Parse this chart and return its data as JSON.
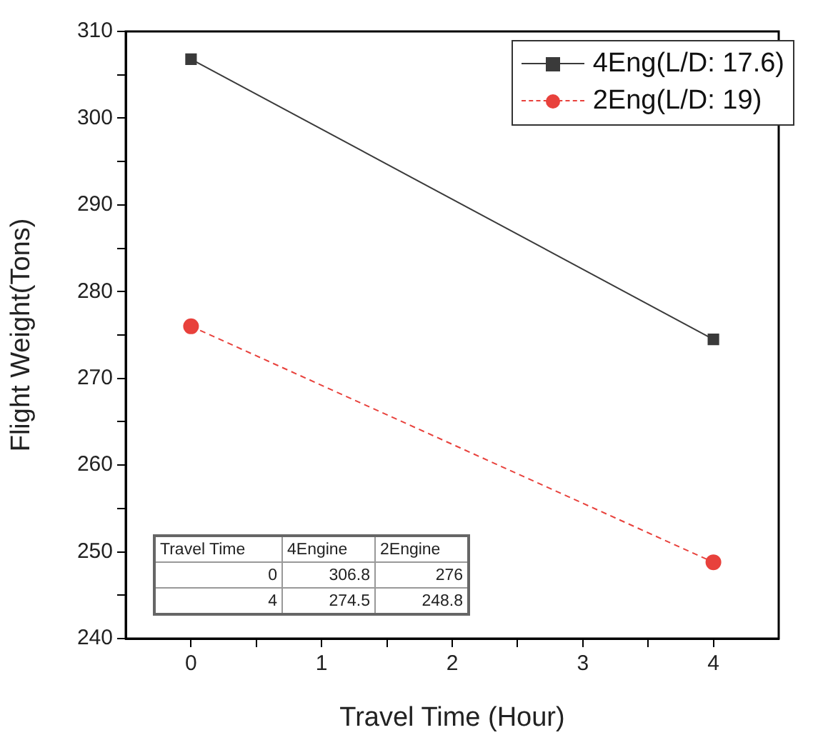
{
  "chart_data": {
    "type": "line",
    "xlabel": "Travel Time (Hour)",
    "ylabel": "Flight Weight(Tons)",
    "x": [
      0,
      4
    ],
    "series": [
      {
        "name": "4Eng(L/D: 17.6)",
        "color": "#3a3a3a",
        "values": [
          306.8,
          274.5
        ],
        "marker": "square",
        "line_style": "solid"
      },
      {
        "name": "2Eng(L/D: 19)",
        "color": "#e8413c",
        "values": [
          276,
          248.8
        ],
        "marker": "circle",
        "line_style": "dashed"
      }
    ],
    "xlim": [
      -0.5,
      4.5
    ],
    "xticks": [
      0,
      {
        "value": 0.5,
        "label": null
      },
      1,
      {
        "value": 1.5,
        "label": null
      },
      2,
      {
        "value": 2.5,
        "label": null
      },
      3,
      {
        "value": 3.5,
        "label": null
      },
      4
    ],
    "ylim": [
      240,
      310
    ],
    "yticks": [
      240,
      {
        "value": 245,
        "label": null
      },
      250,
      {
        "value": 255,
        "label": null
      },
      260,
      {
        "value": 265,
        "label": null
      },
      270,
      {
        "value": 275,
        "label": null
      },
      280,
      {
        "value": 285,
        "label": null
      },
      290,
      {
        "value": 295,
        "label": null
      },
      300,
      {
        "value": 305,
        "label": null
      },
      310
    ],
    "legend": "top right",
    "annotations": [
      "Travel Time",
      "4Engine",
      "2Engine",
      "0",
      "306.8",
      "276",
      "4",
      "274.5",
      "248.8"
    ]
  }
}
